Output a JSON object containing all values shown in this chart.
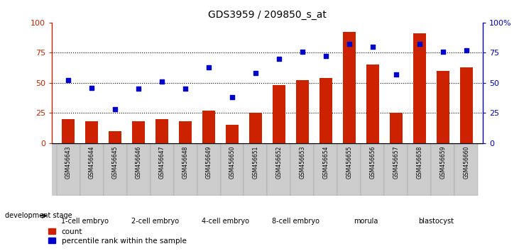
{
  "title": "GDS3959 / 209850_s_at",
  "samples": [
    "GSM456643",
    "GSM456644",
    "GSM456645",
    "GSM456646",
    "GSM456647",
    "GSM456648",
    "GSM456649",
    "GSM456650",
    "GSM456651",
    "GSM456652",
    "GSM456653",
    "GSM456654",
    "GSM456655",
    "GSM456656",
    "GSM456657",
    "GSM456658",
    "GSM456659",
    "GSM456660"
  ],
  "bar_values": [
    20,
    18,
    10,
    18,
    20,
    18,
    27,
    15,
    25,
    48,
    52,
    54,
    92,
    65,
    25,
    91,
    60,
    63
  ],
  "dot_values": [
    52,
    46,
    28,
    45,
    51,
    45,
    63,
    38,
    58,
    70,
    76,
    72,
    82,
    80,
    57,
    82,
    76,
    77
  ],
  "bar_color": "#cc2200",
  "dot_color": "#0000cc",
  "stages": [
    {
      "label": "1-cell embryo",
      "start": 0,
      "end": 3,
      "color": "#99dd99"
    },
    {
      "label": "2-cell embryo",
      "start": 3,
      "end": 6,
      "color": "#99dd99"
    },
    {
      "label": "4-cell embryo",
      "start": 6,
      "end": 9,
      "color": "#99dd99"
    },
    {
      "label": "8-cell embryo",
      "start": 9,
      "end": 12,
      "color": "#99dd99"
    },
    {
      "label": "morula",
      "start": 12,
      "end": 15,
      "color": "#55cc55"
    },
    {
      "label": "blastocyst",
      "start": 15,
      "end": 18,
      "color": "#55cc55"
    }
  ],
  "ylim": [
    0,
    100
  ],
  "yticks": [
    0,
    25,
    50,
    75,
    100
  ],
  "background_color": "#ffffff",
  "left_axis_color": "#cc2200",
  "right_axis_color": "#0000cc",
  "sample_bg_color": "#cccccc",
  "dev_stage_label": "development stage"
}
